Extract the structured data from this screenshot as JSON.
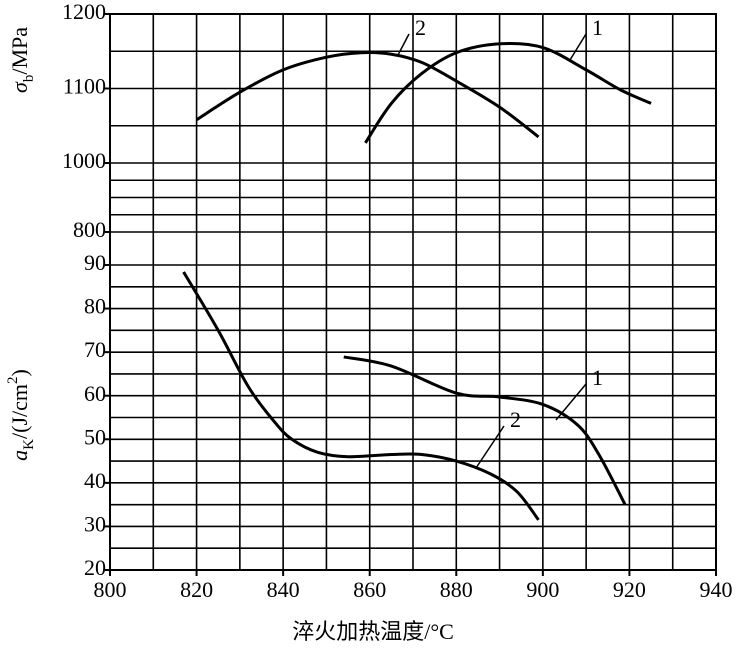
{
  "chart_data": [
    {
      "type": "line",
      "ylabel": [
        "σ",
        "b",
        "/MPa"
      ],
      "xlim": [
        800,
        940
      ],
      "xgrid": [
        800,
        810,
        820,
        830,
        840,
        850,
        860,
        870,
        880,
        890,
        900,
        910,
        920,
        930,
        940
      ],
      "ylim": [
        800,
        1200
      ],
      "ybreak": 1000,
      "yticks": [
        800,
        1000,
        1100,
        1200
      ],
      "ygrid": [
        800,
        850,
        900,
        950,
        1000,
        1050,
        1100,
        1150,
        1200
      ],
      "series": [
        {
          "name": "1",
          "color": "#000000",
          "x": [
            859,
            865,
            872,
            880,
            890,
            900,
            910,
            918,
            925
          ],
          "values": [
            1027,
            1080,
            1120,
            1148,
            1160,
            1155,
            1125,
            1098,
            1080
          ]
        },
        {
          "name": "2",
          "color": "#000000",
          "x": [
            820,
            830,
            840,
            850,
            858,
            865,
            872,
            880,
            890,
            899
          ],
          "values": [
            1058,
            1095,
            1125,
            1142,
            1148,
            1146,
            1135,
            1110,
            1075,
            1035
          ]
        }
      ]
    },
    {
      "type": "line",
      "ylabel": [
        "a",
        "K",
        "/(J/cm",
        "2",
        ")"
      ],
      "xlabel": "淬火加热温度/°C",
      "xlim": [
        800,
        940
      ],
      "xticks": [
        800,
        820,
        840,
        860,
        880,
        900,
        920,
        940
      ],
      "xgrid": [
        800,
        810,
        820,
        830,
        840,
        850,
        860,
        870,
        880,
        890,
        900,
        910,
        920,
        930,
        940
      ],
      "ylim": [
        20,
        90
      ],
      "yticks": [
        20,
        30,
        40,
        50,
        60,
        70,
        80,
        90
      ],
      "ygrid": [
        20,
        25,
        30,
        35,
        40,
        45,
        50,
        55,
        60,
        65,
        70,
        75,
        80,
        85,
        90
      ],
      "series": [
        {
          "name": "1",
          "color": "#000000",
          "x": [
            854,
            865,
            880,
            890,
            900,
            908,
            913,
            919
          ],
          "values": [
            68.9,
            66.8,
            60.6,
            59.7,
            58,
            53.3,
            46.4,
            35
          ]
        },
        {
          "name": "2",
          "color": "#000000",
          "x": [
            817,
            825,
            832,
            838,
            842,
            848,
            855,
            865,
            872,
            880,
            888,
            894,
            899
          ],
          "values": [
            88.4,
            75,
            62,
            54,
            50,
            47,
            46,
            46.5,
            46.5,
            45,
            42,
            38,
            31.5
          ]
        }
      ]
    }
  ]
}
